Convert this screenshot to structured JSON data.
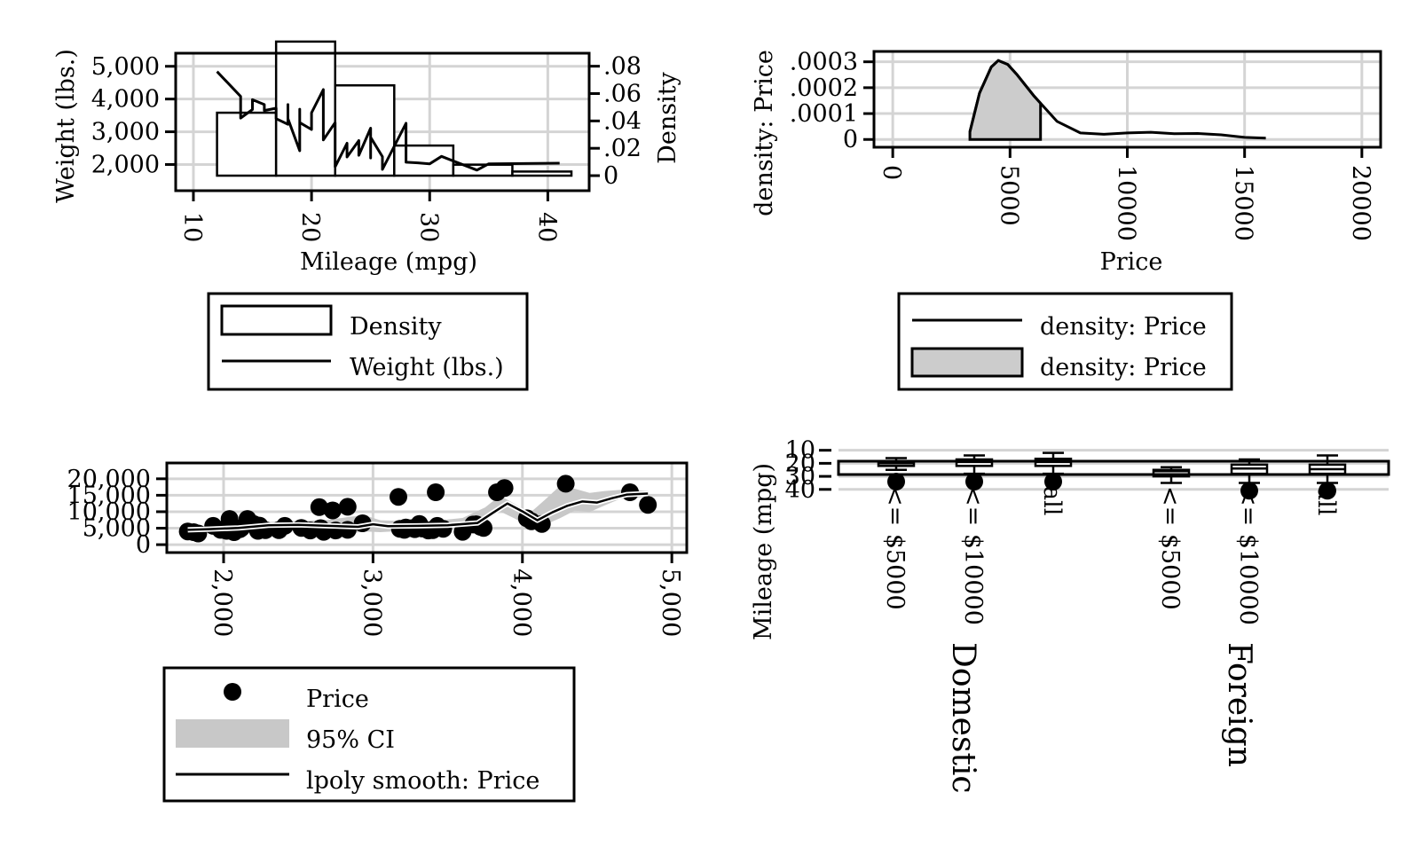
{
  "chart_data": [
    {
      "id": "p1",
      "type": "bar",
      "subtype": "histogram with line overlay (dual y axes)",
      "xlabel": "Mileage (mpg)",
      "ylabel_left": "Weight (lbs.)",
      "ylabel_right": "Density",
      "xticks": [
        "10",
        "20",
        "30",
        "40"
      ],
      "xlim": [
        8.5,
        43.5
      ],
      "yticks_left": [
        "2,000",
        "3,000",
        "4,000",
        "5,000"
      ],
      "ylim_left": [
        1200,
        5400
      ],
      "yticks_right": [
        ".08",
        ".06",
        ".04",
        ".02",
        "0"
      ],
      "ylim_right": [
        -0.011,
        0.0895
      ],
      "grid": true,
      "legend_position": "bottom",
      "legend": [
        {
          "label": "Density",
          "symbol": "box"
        },
        {
          "label": "Weight (lbs.)",
          "symbol": "line"
        }
      ],
      "histogram": {
        "series_name": "Density",
        "bins": [
          {
            "x0": 12,
            "x1": 17,
            "density": 0.046
          },
          {
            "x0": 17,
            "x1": 22,
            "density": 0.098
          },
          {
            "x0": 22,
            "x1": 27,
            "density": 0.066
          },
          {
            "x0": 27,
            "x1": 32,
            "density": 0.022
          },
          {
            "x0": 32,
            "x1": 37,
            "density": 0.008
          },
          {
            "x0": 37,
            "x1": 42,
            "density": 0.003
          }
        ]
      },
      "line": {
        "series_name": "Weight (lbs.)",
        "x": [
          12,
          14,
          14,
          15,
          15,
          16,
          16,
          17,
          17,
          18,
          18,
          18,
          19,
          19,
          19,
          20,
          20,
          21,
          21,
          22,
          22,
          23,
          23,
          24,
          24,
          25,
          25,
          25,
          26,
          26,
          28,
          28,
          29,
          30,
          31,
          34,
          35,
          41
        ],
        "y": [
          4840,
          4080,
          3420,
          3680,
          3980,
          3830,
          3650,
          3720,
          3400,
          3230,
          3830,
          3400,
          2420,
          3690,
          3280,
          3070,
          3580,
          4290,
          2750,
          3280,
          1930,
          2650,
          2230,
          2730,
          2280,
          3110,
          2200,
          2830,
          2240,
          1850,
          3260,
          2070,
          2050,
          2020,
          2250,
          1830,
          2020,
          2040
        ]
      }
    },
    {
      "id": "p2",
      "type": "area",
      "subtype": "kernel density with shaded range",
      "xlabel": "Price",
      "ylabel": "density: Price",
      "xticks": [
        "0",
        "5000",
        "10000",
        "15000",
        "20000"
      ],
      "xlim": [
        -800,
        20800
      ],
      "yticks": [
        "0",
        ".0001",
        ".0002",
        ".0003"
      ],
      "ylim": [
        -3e-05,
        0.00034
      ],
      "grid": true,
      "legend_position": "bottom",
      "legend": [
        {
          "label": "density: Price",
          "symbol": "line"
        },
        {
          "label": "density: Price",
          "symbol": "filled-box"
        }
      ],
      "line": {
        "x": [
          3290,
          3700,
          4200,
          4500,
          4900,
          5300,
          6000,
          7000,
          8000,
          9000,
          10000,
          11000,
          12000,
          13000,
          14000,
          15000,
          15906
        ],
        "y": [
          3e-05,
          0.00018,
          0.00028,
          0.000305,
          0.00029,
          0.00025,
          0.00017,
          7e-05,
          2.5e-05,
          2e-05,
          2.5e-05,
          2.8e-05,
          2.2e-05,
          2.3e-05,
          1.8e-05,
          8e-06,
          5e-06
        ]
      },
      "shaded_range": [
        3290,
        6300
      ]
    },
    {
      "id": "p3",
      "type": "scatter",
      "subtype": "scatter with lpoly smooth and 95% CI",
      "xlabel": "",
      "ylabel": "",
      "xticks": [
        "2,000",
        "3,000",
        "4,000",
        "5,000"
      ],
      "xlim": [
        1620,
        5100
      ],
      "yticks": [
        "0",
        "5,000",
        "10,000",
        "15,000",
        "20,000"
      ],
      "ylim": [
        -2400,
        24800
      ],
      "grid": true,
      "legend_position": "bottom",
      "legend": [
        {
          "label": "Price",
          "symbol": "dot"
        },
        {
          "label": "95% CI",
          "symbol": "filled-box"
        },
        {
          "label": "lpoly smooth: Price",
          "symbol": "line"
        }
      ],
      "points": {
        "series_name": "Price",
        "x": [
          1760,
          1800,
          1830,
          1930,
          1980,
          2020,
          2040,
          2070,
          2110,
          2120,
          2160,
          2200,
          2230,
          2240,
          2280,
          2370,
          2410,
          2520,
          2580,
          2640,
          2650,
          2670,
          2730,
          2750,
          2830,
          2830,
          2930,
          3170,
          3180,
          3210,
          3220,
          3260,
          3280,
          3310,
          3330,
          3370,
          3400,
          3420,
          3430,
          3470,
          3600,
          3670,
          3690,
          3720,
          3740,
          3830,
          3880,
          4030,
          4060,
          4130,
          4290,
          4720,
          4840
        ],
        "y": [
          4000,
          3800,
          3400,
          5700,
          4500,
          4200,
          7800,
          3800,
          4700,
          5100,
          7800,
          6300,
          4200,
          5800,
          4400,
          4400,
          5700,
          5100,
          4300,
          11400,
          5000,
          3900,
          10400,
          4300,
          11500,
          4500,
          6500,
          14500,
          4800,
          4500,
          5200,
          5000,
          4700,
          6300,
          4900,
          4300,
          4400,
          15900,
          5700,
          4800,
          3900,
          6100,
          6200,
          5400,
          5100,
          15900,
          17200,
          8000,
          7100,
          6300,
          18500,
          15900,
          12100
        ]
      },
      "smooth": {
        "series_name": "lpoly smooth: Price",
        "x": [
          1760,
          1900,
          2100,
          2300,
          2500,
          2700,
          2900,
          3000,
          3100,
          3300,
          3500,
          3700,
          3800,
          3900,
          4000,
          4100,
          4200,
          4300,
          4400,
          4500,
          4600,
          4700,
          4840
        ],
        "y": [
          4500,
          4700,
          5100,
          5900,
          6000,
          5700,
          5400,
          6200,
          5600,
          5700,
          5900,
          6600,
          9600,
          12500,
          10100,
          7400,
          9800,
          11800,
          13100,
          12800,
          14100,
          15200,
          15500
        ]
      },
      "ci": {
        "series_name": "95% CI",
        "x": [
          1760,
          1900,
          2100,
          2300,
          2500,
          2700,
          2850,
          2950,
          3050,
          3200,
          3400,
          3600,
          3750,
          3850,
          3950,
          4050,
          4150,
          4250,
          4350,
          4450,
          4550,
          4650,
          4840
        ],
        "lo": [
          3300,
          3700,
          4300,
          4900,
          4800,
          3900,
          3500,
          4000,
          3800,
          4200,
          4600,
          5100,
          7900,
          10100,
          7900,
          5200,
          6000,
          8000,
          10300,
          9900,
          11900,
          13800,
          14600
        ],
        "hi": [
          5700,
          5700,
          5900,
          6900,
          7200,
          7500,
          8500,
          8800,
          7400,
          7200,
          7200,
          8100,
          11300,
          14900,
          12300,
          9600,
          13600,
          17800,
          17000,
          15700,
          16300,
          16600,
          16400
        ]
      }
    },
    {
      "id": "p4",
      "type": "box",
      "subtype": "grouped box plot (vertical, reversed axis)",
      "ylabel": "Mileage (mpg)",
      "yticks": [
        "10",
        "20",
        "30",
        "40"
      ],
      "ylim": [
        41.5,
        7.5
      ],
      "grid": true,
      "groups": [
        "Domestic",
        "Foreign"
      ],
      "categories": [
        "<= $5000",
        "<= $10000",
        "all",
        "<= $5000",
        "<= $10000",
        "all"
      ],
      "boxes": [
        {
          "group": "Domestic",
          "label": "<= $5000",
          "whisker_lo": 16,
          "q1": 18.5,
          "median": 20,
          "q3": 22,
          "whisker_hi": 25,
          "outliers": [
            34
          ]
        },
        {
          "group": "Domestic",
          "label": "<= $10000",
          "whisker_lo": 14,
          "q1": 17,
          "median": 19,
          "q3": 22,
          "whisker_hi": 28,
          "outliers": [
            34
          ]
        },
        {
          "group": "Domestic",
          "label": "all",
          "whisker_lo": 12,
          "q1": 16.5,
          "median": 19,
          "q3": 22,
          "whisker_hi": 28,
          "outliers": [
            34
          ]
        },
        {
          "group": "Foreign",
          "label": "<= $5000",
          "whisker_lo": 23,
          "q1": 25,
          "median": 26,
          "q3": 30,
          "whisker_hi": 35,
          "outliers": []
        },
        {
          "group": "Foreign",
          "label": "<= $10000",
          "whisker_lo": 17,
          "q1": 21,
          "median": 24,
          "q3": 28,
          "whisker_hi": 35,
          "outliers": [
            41
          ]
        },
        {
          "group": "Foreign",
          "label": "all",
          "whisker_lo": 14,
          "q1": 21,
          "median": 24.5,
          "q3": 28,
          "whisker_hi": 35,
          "outliers": [
            41
          ]
        }
      ]
    }
  ]
}
